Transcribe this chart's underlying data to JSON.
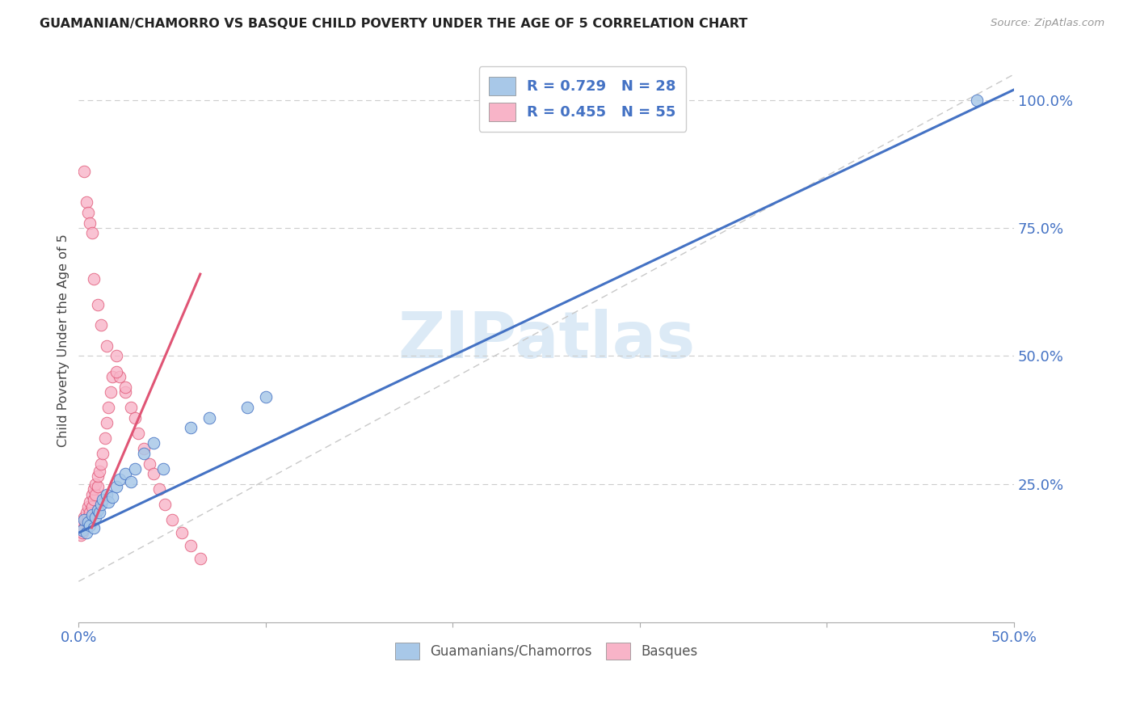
{
  "title": "GUAMANIAN/CHAMORRO VS BASQUE CHILD POVERTY UNDER THE AGE OF 5 CORRELATION CHART",
  "source": "Source: ZipAtlas.com",
  "ylabel": "Child Poverty Under the Age of 5",
  "xlim": [
    0.0,
    0.5
  ],
  "ylim": [
    -0.02,
    1.08
  ],
  "xticks": [
    0.0,
    0.1,
    0.2,
    0.3,
    0.4,
    0.5
  ],
  "xticklabels": [
    "0.0%",
    "",
    "",
    "",
    "",
    "50.0%"
  ],
  "yticks_right": [
    0.25,
    0.5,
    0.75,
    1.0
  ],
  "ytickslabels_right": [
    "25.0%",
    "50.0%",
    "75.0%",
    "100.0%"
  ],
  "legend_r1": "R = 0.729",
  "legend_n1": "N = 28",
  "legend_r2": "R = 0.455",
  "legend_n2": "N = 55",
  "label1": "Guamanians/Chamorros",
  "label2": "Basques",
  "color1": "#a8c8e8",
  "color2": "#f8b4c8",
  "line_color1": "#4472c4",
  "line_color2": "#e05575",
  "title_color": "#222222",
  "axis_label_color": "#444444",
  "tick_label_color": "#4472c4",
  "watermark_text": "ZIPatlas",
  "background_color": "#ffffff",
  "guamanian_x": [
    0.002,
    0.003,
    0.004,
    0.005,
    0.006,
    0.007,
    0.008,
    0.009,
    0.01,
    0.011,
    0.012,
    0.013,
    0.015,
    0.016,
    0.018,
    0.02,
    0.022,
    0.025,
    0.028,
    0.03,
    0.035,
    0.04,
    0.045,
    0.06,
    0.07,
    0.09,
    0.1,
    0.48
  ],
  "guamanian_y": [
    0.16,
    0.18,
    0.155,
    0.175,
    0.17,
    0.19,
    0.165,
    0.185,
    0.2,
    0.195,
    0.21,
    0.22,
    0.23,
    0.215,
    0.225,
    0.245,
    0.26,
    0.27,
    0.255,
    0.28,
    0.31,
    0.33,
    0.28,
    0.36,
    0.38,
    0.4,
    0.42,
    1.0
  ],
  "basque_x": [
    0.0,
    0.001,
    0.001,
    0.002,
    0.002,
    0.003,
    0.003,
    0.004,
    0.004,
    0.005,
    0.005,
    0.006,
    0.006,
    0.007,
    0.007,
    0.008,
    0.008,
    0.009,
    0.009,
    0.01,
    0.01,
    0.011,
    0.012,
    0.013,
    0.014,
    0.015,
    0.016,
    0.017,
    0.018,
    0.02,
    0.022,
    0.025,
    0.028,
    0.03,
    0.032,
    0.035,
    0.038,
    0.04,
    0.043,
    0.046,
    0.05,
    0.055,
    0.06,
    0.065,
    0.003,
    0.004,
    0.005,
    0.006,
    0.007,
    0.008,
    0.01,
    0.012,
    0.015,
    0.02,
    0.025
  ],
  "basque_y": [
    0.16,
    0.15,
    0.17,
    0.155,
    0.175,
    0.165,
    0.185,
    0.175,
    0.195,
    0.185,
    0.205,
    0.195,
    0.215,
    0.205,
    0.23,
    0.22,
    0.24,
    0.23,
    0.25,
    0.245,
    0.265,
    0.275,
    0.29,
    0.31,
    0.34,
    0.37,
    0.4,
    0.43,
    0.46,
    0.5,
    0.46,
    0.43,
    0.4,
    0.38,
    0.35,
    0.32,
    0.29,
    0.27,
    0.24,
    0.21,
    0.18,
    0.155,
    0.13,
    0.105,
    0.86,
    0.8,
    0.78,
    0.76,
    0.74,
    0.65,
    0.6,
    0.56,
    0.52,
    0.47,
    0.44
  ],
  "blue_line_x": [
    0.0,
    0.5
  ],
  "blue_line_y": [
    0.155,
    1.02
  ],
  "pink_line_x": [
    0.007,
    0.065
  ],
  "pink_line_y": [
    0.165,
    0.66
  ]
}
